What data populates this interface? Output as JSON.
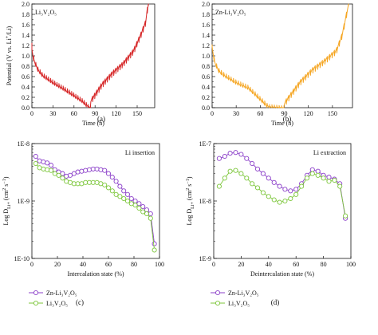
{
  "colors": {
    "red": "#d62728",
    "orange": "#f5a623",
    "purple": "#8b3fc9",
    "green": "#7cc63a"
  },
  "chart_data": [
    {
      "type": "line",
      "panel_label": "(a)",
      "label_text": "Li₃V₂O₅",
      "color": "#d62728",
      "xlabel": "Time (h)",
      "ylabel": "Potential (V vs. Li⁺/Li)",
      "xlim": [
        0,
        175
      ],
      "ylim": [
        0,
        2.0
      ],
      "xticks": [
        0,
        30,
        60,
        90,
        120,
        150
      ],
      "yticks": [
        0.0,
        0.2,
        0.4,
        0.6,
        0.8,
        1.0,
        1.2,
        1.4,
        1.6,
        1.8,
        2.0
      ],
      "ytick_labels": [
        "0.0",
        "0.2",
        "0.4",
        "0.6",
        "0.8",
        "1.0",
        "1.2",
        "1.4",
        "1.6",
        "1.8",
        "2.0"
      ],
      "gitt": {
        "t0": 0,
        "t_switch": 82,
        "t_end": 166,
        "discharge_anchors": [
          [
            0,
            1.15
          ],
          [
            3,
            0.95
          ],
          [
            8,
            0.78
          ],
          [
            15,
            0.66
          ],
          [
            30,
            0.52
          ],
          [
            45,
            0.4
          ],
          [
            60,
            0.27
          ],
          [
            72,
            0.16
          ],
          [
            82,
            0.03
          ]
        ],
        "charge_anchors": [
          [
            82,
            0.05
          ],
          [
            90,
            0.2
          ],
          [
            100,
            0.4
          ],
          [
            115,
            0.62
          ],
          [
            130,
            0.8
          ],
          [
            145,
            1.05
          ],
          [
            155,
            1.35
          ],
          [
            162,
            1.6
          ],
          [
            166,
            1.98
          ]
        ],
        "initial_max": 1.25,
        "step": 3.0,
        "spike_dis": 0.07,
        "spike_ch": 0.09
      }
    },
    {
      "type": "line",
      "panel_label": "(b)",
      "label_text": "Zn-Li₃V₂O₅",
      "color": "#f5a623",
      "xlabel": "Time (h)",
      "ylabel": "",
      "xlim": [
        0,
        175
      ],
      "ylim": [
        0,
        2.0
      ],
      "xticks": [
        0,
        30,
        60,
        90,
        120,
        150
      ],
      "yticks": [
        0.0,
        0.2,
        0.4,
        0.6,
        0.8,
        1.0,
        1.2,
        1.4,
        1.6,
        1.8,
        2.0
      ],
      "ytick_labels": [
        "0.0",
        "0.2",
        "0.4",
        "0.6",
        "0.8",
        "1.0",
        "1.2",
        "1.4",
        "1.6",
        "1.8",
        "2.0"
      ],
      "gitt": {
        "t0": 0,
        "t_switch": 90,
        "t_end": 170,
        "discharge_anchors": [
          [
            0,
            1.2
          ],
          [
            3,
            0.92
          ],
          [
            8,
            0.75
          ],
          [
            15,
            0.66
          ],
          [
            30,
            0.52
          ],
          [
            45,
            0.42
          ],
          [
            60,
            0.2
          ],
          [
            70,
            0.05
          ],
          [
            90,
            0.02
          ]
        ],
        "charge_anchors": [
          [
            90,
            0.03
          ],
          [
            98,
            0.2
          ],
          [
            110,
            0.45
          ],
          [
            125,
            0.68
          ],
          [
            140,
            0.85
          ],
          [
            155,
            1.05
          ],
          [
            162,
            1.35
          ],
          [
            167,
            1.7
          ],
          [
            170,
            1.98
          ]
        ],
        "initial_max": 1.22,
        "step": 3.0,
        "spike_dis": 0.07,
        "spike_ch": 0.09
      }
    },
    {
      "type": "scatter",
      "panel_label": "(c)",
      "annotation": "Li insertion",
      "xlabel": "Intercalation state (%)",
      "ylabel": "Log D_Li+ (cm² s⁻¹)",
      "xlim": [
        0,
        100
      ],
      "log_scale_y": true,
      "ylim": [
        1e-10,
        1e-08
      ],
      "xticks": [
        0,
        20,
        40,
        60,
        80,
        100
      ],
      "yticks": [
        1e-10,
        1e-09,
        1e-08
      ],
      "ytick_labels": [
        "1E-10",
        "1E-9",
        "1E-8"
      ],
      "legend_position": "bottom-left",
      "series": [
        {
          "name": "Zn-Li₃V₂O₅",
          "color": "#8b3fc9",
          "x": [
            3,
            6,
            9,
            12,
            15,
            18,
            21,
            24,
            27,
            30,
            33,
            36,
            39,
            42,
            45,
            48,
            51,
            54,
            57,
            60,
            63,
            66,
            69,
            72,
            75,
            78,
            81,
            84,
            87,
            90,
            93,
            96
          ],
          "y": [
            6e-09,
            5e-09,
            4.8e-09,
            4.6e-09,
            4.2e-09,
            3.5e-09,
            3.2e-09,
            3e-09,
            2.7e-09,
            2.8e-09,
            3e-09,
            3.2e-09,
            3.3e-09,
            3.4e-09,
            3.5e-09,
            3.6e-09,
            3.6e-09,
            3.5e-09,
            3.4e-09,
            3e-09,
            2.6e-09,
            2.2e-09,
            1.8e-09,
            1.5e-09,
            1.3e-09,
            1.1e-09,
            1e-09,
            9e-10,
            8e-10,
            7e-10,
            6e-10,
            1.8e-10
          ]
        },
        {
          "name": "Li₃V₂O₅",
          "color": "#7cc63a",
          "x": [
            3,
            6,
            9,
            12,
            15,
            18,
            21,
            24,
            27,
            30,
            33,
            36,
            39,
            42,
            45,
            48,
            51,
            54,
            57,
            60,
            63,
            66,
            69,
            72,
            75,
            78,
            81,
            84,
            87,
            90,
            93,
            96
          ],
          "y": [
            4.5e-09,
            3.8e-09,
            3.6e-09,
            3.5e-09,
            3.4e-09,
            3e-09,
            2.8e-09,
            2.5e-09,
            2.2e-09,
            2.1e-09,
            2e-09,
            2e-09,
            2e-09,
            2.1e-09,
            2.1e-09,
            2.1e-09,
            2.1e-09,
            2e-09,
            1.9e-09,
            1.7e-09,
            1.5e-09,
            1.3e-09,
            1.2e-09,
            1.1e-09,
            1e-09,
            9e-10,
            8.5e-10,
            7.5e-10,
            6.5e-10,
            6e-10,
            5e-10,
            1.4e-10
          ]
        }
      ]
    },
    {
      "type": "scatter",
      "panel_label": "(d)",
      "annotation": "Li extraction",
      "xlabel": "Deintercalation state (%)",
      "ylabel": "Log D_Li+ (cm² s⁻¹)",
      "xlim": [
        0,
        100
      ],
      "log_scale_y": true,
      "ylim": [
        1e-09,
        1e-07
      ],
      "xticks": [
        0,
        20,
        40,
        60,
        80,
        100
      ],
      "yticks": [
        1e-09,
        1e-08,
        1e-07
      ],
      "ytick_labels": [
        "1E-9",
        "1E-8",
        "1E-7"
      ],
      "legend_position": "bottom-left",
      "series": [
        {
          "name": "Zn-Li₃V₂O₅",
          "color": "#8b3fc9",
          "x": [
            4,
            8,
            12,
            16,
            20,
            24,
            28,
            32,
            36,
            40,
            44,
            48,
            52,
            56,
            60,
            64,
            68,
            72,
            76,
            80,
            84,
            88,
            92,
            96
          ],
          "y": [
            5.5e-08,
            6e-08,
            6.8e-08,
            7e-08,
            6.5e-08,
            5.5e-08,
            4.5e-08,
            3.6e-08,
            3e-08,
            2.5e-08,
            2.1e-08,
            1.8e-08,
            1.6e-08,
            1.5e-08,
            1.6e-08,
            2e-08,
            2.8e-08,
            3.5e-08,
            3.3e-08,
            2.8e-08,
            2.6e-08,
            2.4e-08,
            2e-08,
            5e-09
          ]
        },
        {
          "name": "Li₃V₂O₅",
          "color": "#7cc63a",
          "x": [
            4,
            8,
            12,
            16,
            20,
            24,
            28,
            32,
            36,
            40,
            44,
            48,
            52,
            56,
            60,
            64,
            68,
            72,
            76,
            80,
            84,
            88,
            92,
            96
          ],
          "y": [
            1.8e-08,
            2.5e-08,
            3.3e-08,
            3.4e-08,
            3e-08,
            2.5e-08,
            2e-08,
            1.7e-08,
            1.4e-08,
            1.2e-08,
            1.05e-08,
            9.5e-09,
            1e-08,
            1.1e-08,
            1.3e-08,
            1.8e-08,
            2.5e-08,
            3e-08,
            2.8e-08,
            2.5e-08,
            2.2e-08,
            2.3e-08,
            1.8e-08,
            5.5e-09
          ]
        }
      ]
    }
  ]
}
